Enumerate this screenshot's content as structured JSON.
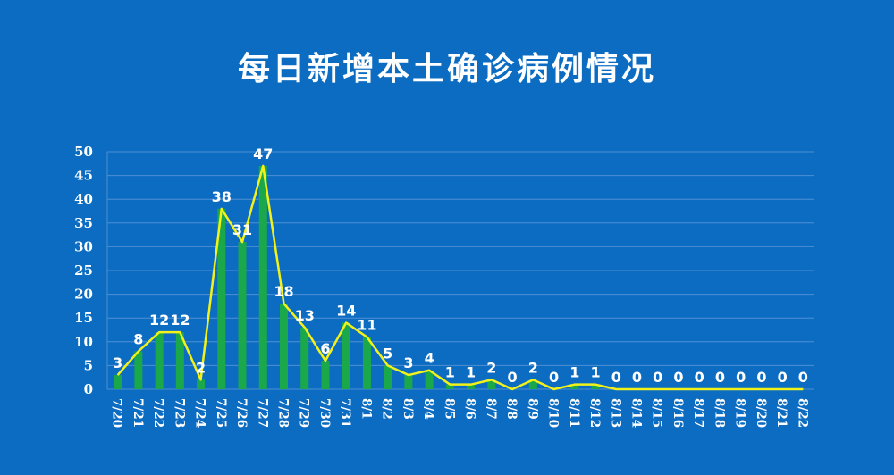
{
  "title": "每日新增本土确诊病例情况",
  "colors": {
    "background": "#0b6cc2",
    "bar": "#1aa84a",
    "line": "#f2f21a",
    "gridline": "#4f8fd2",
    "text": "#ffffff"
  },
  "chart_data": {
    "type": "bar",
    "categories": [
      "7/20",
      "7/21",
      "7/22",
      "7/23",
      "7/24",
      "7/25",
      "7/26",
      "7/27",
      "7/28",
      "7/29",
      "7/30",
      "7/31",
      "8/1",
      "8/2",
      "8/3",
      "8/4",
      "8/5",
      "8/6",
      "8/7",
      "8/8",
      "8/9",
      "8/10",
      "8/11",
      "8/12",
      "8/13",
      "8/14",
      "8/15",
      "8/16",
      "8/17",
      "8/18",
      "8/19",
      "8/20",
      "8/21",
      "8/22"
    ],
    "values": [
      3,
      8,
      12,
      12,
      2,
      38,
      31,
      47,
      18,
      13,
      6,
      14,
      11,
      5,
      3,
      4,
      1,
      1,
      2,
      0,
      2,
      0,
      1,
      1,
      0,
      0,
      0,
      0,
      0,
      0,
      0,
      0,
      0,
      0
    ],
    "series_line": true,
    "title": "每日新增本土确诊病例情况",
    "xlabel": "",
    "ylabel": "",
    "ylim": [
      0,
      50
    ],
    "yticks": [
      0,
      5,
      10,
      15,
      20,
      25,
      30,
      35,
      40,
      45,
      50
    ],
    "grid": true,
    "legend": "none"
  }
}
